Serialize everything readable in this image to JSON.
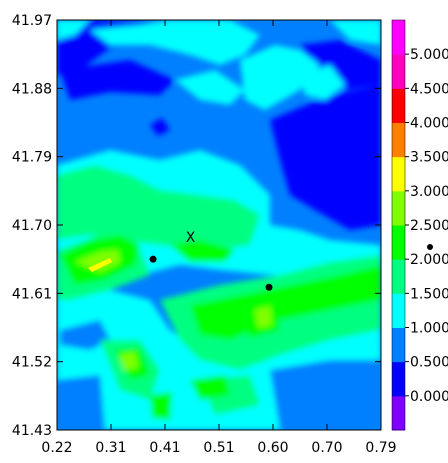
{
  "chart_data": {
    "type": "heatmap",
    "xlim": [
      0.22,
      0.79
    ],
    "ylim": [
      41.43,
      41.97
    ],
    "x_ticks": [
      "0.22",
      "0.31",
      "0.41",
      "0.51",
      "0.60",
      "0.70",
      "0.79"
    ],
    "y_ticks": [
      "41.43",
      "41.52",
      "41.61",
      "41.70",
      "41.79",
      "41.88",
      "41.97"
    ],
    "colorbar": {
      "labels": [
        "0.000",
        "0.500",
        "1.000",
        "1.500",
        "2.000",
        "2.500",
        "3.000",
        "3.500",
        "4.000",
        "4.500",
        "5.000"
      ],
      "colors": [
        "#8000ff",
        "#0000ff",
        "#0080ff",
        "#00ffff",
        "#00ff80",
        "#00ff00",
        "#80ff00",
        "#ffff00",
        "#ff8000",
        "#ff0000",
        "#ff00c0",
        "#ff00ff"
      ]
    },
    "station_points": [
      {
        "x": 0.389,
        "y": 41.655
      },
      {
        "x": 0.593,
        "y": 41.618
      }
    ],
    "marker": {
      "label": "X",
      "x": 0.455,
      "y": 41.683
    },
    "grid": false,
    "legend": "colorbar-right"
  }
}
